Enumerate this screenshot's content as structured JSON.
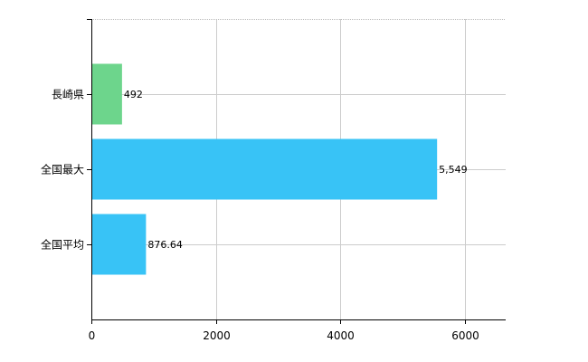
{
  "chart_data": {
    "type": "bar",
    "orientation": "horizontal",
    "categories": [
      "長崎県",
      "全国最大",
      "全国平均"
    ],
    "values": [
      492,
      5549,
      876.64
    ],
    "value_labels": [
      "492",
      "5,549",
      "876.64"
    ],
    "bar_colors": [
      "#6dd58c",
      "#38c3f6",
      "#38c3f6"
    ],
    "xlim": [
      0,
      6650
    ],
    "x_ticks": [
      0,
      2000,
      4000,
      6000
    ],
    "x_tick_labels": [
      "0",
      "2000",
      "4000",
      "6000"
    ],
    "grid": true,
    "legend": "none"
  }
}
